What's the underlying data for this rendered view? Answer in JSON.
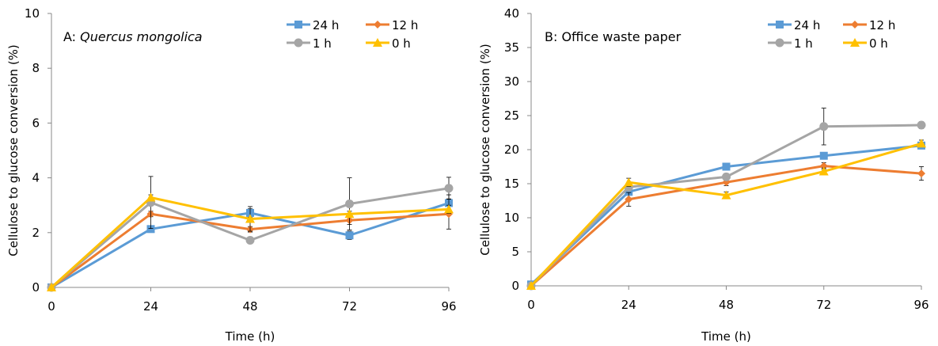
{
  "chart_data": [
    {
      "type": "line",
      "annotation_prefix": "A: ",
      "annotation_italic": "Quercus mongolica",
      "xlabel": "Time (h)",
      "ylabel": "Cellulose to glucose conversion (%)",
      "x": [
        0,
        24,
        48,
        72,
        96
      ],
      "xlim": [
        0,
        96
      ],
      "ylim": [
        0,
        10
      ],
      "y_ticks": [
        0,
        2,
        4,
        6,
        8,
        10
      ],
      "x_ticks": [
        0,
        24,
        48,
        72,
        96
      ],
      "legend_position": "top-right",
      "series": [
        {
          "name": "24 h",
          "color": "#5B9BD5",
          "marker": "square",
          "values": [
            0,
            2.13,
            2.72,
            1.9,
            3.08
          ],
          "errors": [
            0,
            0.1,
            0.15,
            0.15,
            0.3
          ]
        },
        {
          "name": "12 h",
          "color": "#ED7D31",
          "marker": "diamond",
          "values": [
            0,
            2.68,
            2.12,
            2.45,
            2.68
          ],
          "errors": [
            0,
            0.1,
            0.1,
            0.15,
            0.55
          ]
        },
        {
          "name": "1 h",
          "color": "#A5A5A5",
          "marker": "circle",
          "values": [
            0,
            3.1,
            1.72,
            3.05,
            3.62
          ],
          "errors": [
            0,
            0.95,
            0.1,
            0.95,
            0.4
          ]
        },
        {
          "name": "0 h",
          "color": "#FFC000",
          "marker": "triangle",
          "values": [
            0,
            3.28,
            2.5,
            2.68,
            2.85
          ],
          "errors": [
            0,
            0.1,
            0.45,
            0.1,
            0.15
          ]
        }
      ]
    },
    {
      "type": "line",
      "annotation_prefix": "B: Office waste paper",
      "annotation_italic": "",
      "xlabel": "Time (h)",
      "ylabel": "Cellulose to glucose conversion (%)",
      "x": [
        0,
        24,
        48,
        72,
        96
      ],
      "xlim": [
        0,
        96
      ],
      "ylim": [
        0,
        40
      ],
      "y_ticks": [
        0,
        5,
        10,
        15,
        20,
        25,
        30,
        35,
        40
      ],
      "x_ticks": [
        0,
        24,
        48,
        72,
        96
      ],
      "legend_position": "top-right",
      "series": [
        {
          "name": "24 h",
          "color": "#5B9BD5",
          "marker": "square",
          "values": [
            0.2,
            13.8,
            17.5,
            19.1,
            20.6
          ],
          "errors": [
            0,
            0.5,
            0.5,
            0.5,
            0.5
          ]
        },
        {
          "name": "12 h",
          "color": "#ED7D31",
          "marker": "diamond",
          "values": [
            0,
            12.7,
            15.2,
            17.6,
            16.5
          ],
          "errors": [
            0,
            1.0,
            0.5,
            0.5,
            1.0
          ]
        },
        {
          "name": "1 h",
          "color": "#A5A5A5",
          "marker": "circle",
          "values": [
            0,
            14.5,
            16.0,
            23.4,
            23.6
          ],
          "errors": [
            0,
            0.5,
            0.5,
            2.7,
            0.5
          ]
        },
        {
          "name": "0 h",
          "color": "#FFC000",
          "marker": "triangle",
          "values": [
            0,
            15.2,
            13.3,
            16.8,
            20.9
          ],
          "errors": [
            0,
            0.6,
            0.5,
            0.5,
            0.5
          ]
        }
      ]
    }
  ]
}
